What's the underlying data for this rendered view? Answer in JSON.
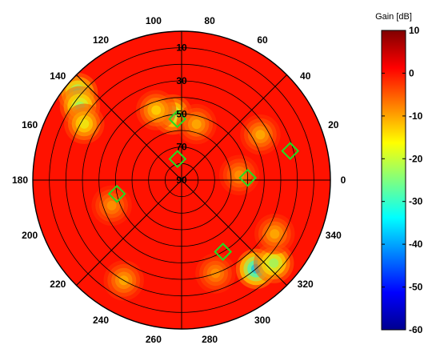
{
  "chart_data": {
    "type": "polar-heatmap",
    "colorbar": {
      "title": "Gain [dB]",
      "range": [
        -60,
        10
      ],
      "ticks": [
        "10",
        "0",
        "-10",
        "-20",
        "-30",
        "-40",
        "-50",
        "-60"
      ],
      "colormap": "jet"
    },
    "azimuth_labels": [
      "0",
      "20",
      "40",
      "60",
      "80",
      "100",
      "120",
      "140",
      "160",
      "180",
      "200",
      "220",
      "240",
      "260",
      "280",
      "300",
      "320",
      "340"
    ],
    "elevation_labels": [
      "10",
      "30",
      "50",
      "70",
      "90"
    ],
    "grid": true,
    "background_gain_db": 0,
    "gain_features": [
      {
        "azimuth": 140,
        "elevation": 8,
        "gain_db": -30
      },
      {
        "azimuth": 144,
        "elevation": 14,
        "gain_db": -25
      },
      {
        "azimuth": 150,
        "elevation": 22,
        "gain_db": -18
      },
      {
        "azimuth": 98,
        "elevation": 50,
        "gain_db": -25
      },
      {
        "azimuth": 110,
        "elevation": 45,
        "gain_db": -15
      },
      {
        "azimuth": 75,
        "elevation": 55,
        "gain_db": -12
      },
      {
        "azimuth": 310,
        "elevation": 20,
        "gain_db": -40
      },
      {
        "azimuth": 318,
        "elevation": 15,
        "gain_db": -25
      },
      {
        "azimuth": 330,
        "elevation": 25,
        "gain_db": -12
      },
      {
        "azimuth": 30,
        "elevation": 35,
        "gain_db": -12
      },
      {
        "azimuth": 5,
        "elevation": 55,
        "gain_db": -10
      },
      {
        "azimuth": 200,
        "elevation": 45,
        "gain_db": -10
      },
      {
        "azimuth": 240,
        "elevation": 20,
        "gain_db": -12
      },
      {
        "azimuth": 290,
        "elevation": 30,
        "gain_db": -10
      }
    ],
    "markers": [
      {
        "azimuth": 94,
        "elevation": 53
      },
      {
        "azimuth": 101,
        "elevation": 77
      },
      {
        "azimuth": 15,
        "elevation": 22
      },
      {
        "azimuth": 2,
        "elevation": 50
      },
      {
        "azimuth": 192,
        "elevation": 50
      },
      {
        "azimuth": 300,
        "elevation": 40
      }
    ],
    "marker_color": "#22dd22"
  }
}
